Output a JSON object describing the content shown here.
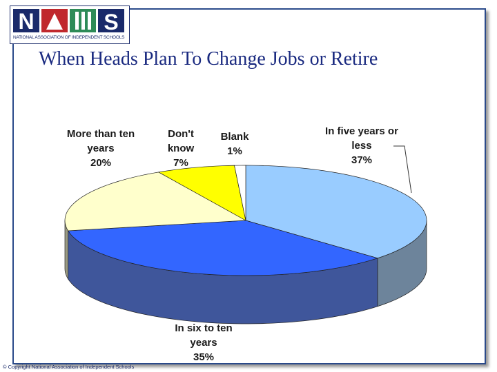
{
  "logo": {
    "text": "NATIONAL ASSOCIATION OF INDEPENDENT SCHOOLS"
  },
  "footer": "© Copyright National Association of Independent Schools",
  "chart_data": {
    "type": "pie",
    "title": "When Heads Plan To Change Jobs or Retire",
    "categories": [
      "In five years or less",
      "In six to ten years",
      "More than ten years",
      "Don't know",
      "Blank"
    ],
    "values": [
      37,
      35,
      20,
      7,
      1
    ],
    "value_labels": [
      "37%",
      "35%",
      "20%",
      "7%",
      "1%"
    ],
    "colors": [
      "#99ccff",
      "#3366ff",
      "#ffffcc",
      "#ffff00",
      "#ffffff"
    ]
  }
}
